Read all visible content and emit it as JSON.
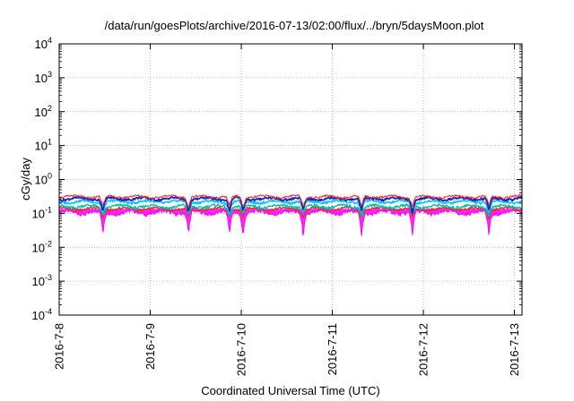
{
  "chart_data": {
    "type": "line",
    "title": "/data/run/goesPlots/archive/2016-07-13/02:00/flux/../bryn/5daysMoon.plot",
    "xlabel": "Coordinated Universal Time (UTC)",
    "ylabel": "cGy/day",
    "y_scale": "log",
    "ylim": [
      0.0001,
      10000
    ],
    "xlim": [
      "2016-07-08 00:00",
      "2016-07-13 02:00"
    ],
    "y_ticks": [
      {
        "value": 0.0001,
        "base": "10",
        "exp": "-4"
      },
      {
        "value": 0.001,
        "base": "10",
        "exp": "-3"
      },
      {
        "value": 0.01,
        "base": "10",
        "exp": "-2"
      },
      {
        "value": 0.1,
        "base": "10",
        "exp": "-1"
      },
      {
        "value": 1,
        "base": "10",
        "exp": "0"
      },
      {
        "value": 10,
        "base": "10",
        "exp": "1"
      },
      {
        "value": 100,
        "base": "10",
        "exp": "2"
      },
      {
        "value": 1000,
        "base": "10",
        "exp": "3"
      },
      {
        "value": 10000,
        "base": "10",
        "exp": "4"
      }
    ],
    "x_ticks": [
      {
        "value": 0,
        "label": "2016-7-8"
      },
      {
        "value": 1,
        "label": "2016-7-9"
      },
      {
        "value": 2,
        "label": "2016-7-10"
      },
      {
        "value": 3,
        "label": "2016-7-11"
      },
      {
        "value": 4,
        "label": "2016-7-12"
      },
      {
        "value": 5,
        "label": "2016-7-13"
      }
    ],
    "grid": true,
    "x_days_span": 5.083,
    "dips": [
      0.48,
      1.42,
      1.87,
      2.02,
      2.68,
      3.32,
      3.88,
      4.72
    ],
    "series": [
      {
        "color": "#ff00ff",
        "base": 0.105,
        "amp": 0.02,
        "dip_depth": 0.55,
        "fill_to": 0.135,
        "line_width": 1.0
      },
      {
        "color": "#e03030",
        "base": 0.135,
        "amp": 0.02,
        "dip_depth": 0.3,
        "line_width": 1.4
      },
      {
        "color": "#00c0a0",
        "base": 0.16,
        "amp": 0.025,
        "dip_depth": 0.3,
        "line_width": 1.4
      },
      {
        "color": "#00c8ff",
        "base": 0.22,
        "amp": 0.03,
        "dip_depth": 0.35,
        "line_width": 1.6
      },
      {
        "color": "#2020c0",
        "base": 0.27,
        "amp": 0.035,
        "dip_depth": 0.4,
        "line_width": 1.8
      },
      {
        "color": "#ff2020",
        "base": 0.31,
        "amp": 0.04,
        "dip_depth": 0.35,
        "line_width": 1.0
      }
    ]
  }
}
